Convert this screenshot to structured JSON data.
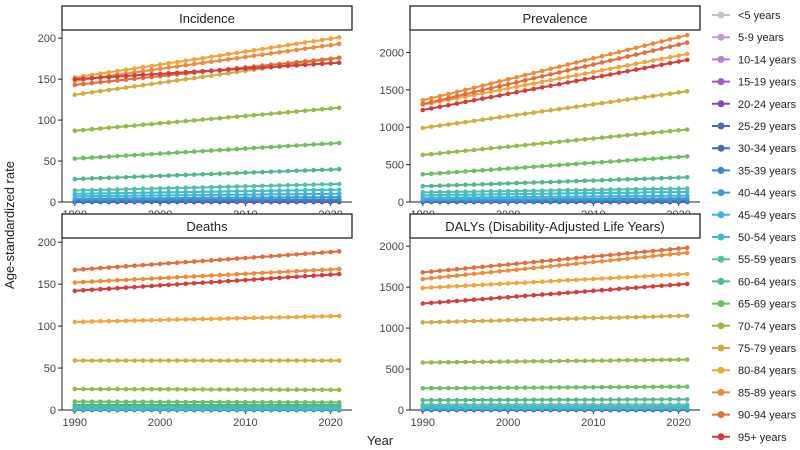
{
  "figure": {
    "ylabel": "Age-standardized rate",
    "xlabel": "Year",
    "colors": {
      "<5 years": "#c4c4c4",
      "5-9 years": "#c39bd3",
      "10-14 years": "#b27fd6",
      "15-19 years": "#9b59c9",
      "20-24 years": "#7d4cc4",
      "25-29 years": "#5565c2",
      "30-34 years": "#3f6fb0",
      "35-39 years": "#3a86bd",
      "40-44 years": "#3b9bd6",
      "45-49 years": "#44b0e0",
      "50-54 years": "#3dbecf",
      "55-59 years": "#52bfa4",
      "60-64 years": "#52b788",
      "65-69 years": "#6cbf60",
      "70-74 years": "#98b84a",
      "75-79 years": "#d1ab3e",
      "80-84 years": "#f4a339",
      "85-89 years": "#ee8a37",
      "90-94 years": "#e36c3b",
      "95+ years": "#d63b3b"
    }
  },
  "chart_data": [
    {
      "type": "line",
      "title": "Incidence",
      "xlabel": "Year",
      "ylabel": "Age-standardized rate",
      "x": [
        1990,
        2021
      ],
      "xticks": [
        "1990",
        "2000",
        "2010",
        "2020"
      ],
      "ylim": [
        0,
        210
      ],
      "yticks": [
        "0",
        "50",
        "100",
        "150",
        "200"
      ],
      "series": [
        {
          "name": "<5 years",
          "values": [
            0,
            0
          ]
        },
        {
          "name": "5-9 years",
          "values": [
            0,
            0
          ]
        },
        {
          "name": "10-14 years",
          "values": [
            0,
            0
          ]
        },
        {
          "name": "15-19 years",
          "values": [
            0,
            0
          ]
        },
        {
          "name": "20-24 years",
          "values": [
            0,
            0
          ]
        },
        {
          "name": "25-29 years",
          "values": [
            0.5,
            0.8
          ]
        },
        {
          "name": "30-34 years",
          "values": [
            1,
            1.5
          ]
        },
        {
          "name": "35-39 years",
          "values": [
            2,
            3
          ]
        },
        {
          "name": "40-44 years",
          "values": [
            4,
            6
          ]
        },
        {
          "name": "45-49 years",
          "values": [
            7,
            10
          ]
        },
        {
          "name": "50-54 years",
          "values": [
            10,
            15
          ]
        },
        {
          "name": "55-59 years",
          "values": [
            14,
            22
          ]
        },
        {
          "name": "60-64 years",
          "values": [
            28,
            40
          ]
        },
        {
          "name": "65-69 years",
          "values": [
            53,
            72
          ]
        },
        {
          "name": "70-74 years",
          "values": [
            87,
            115
          ]
        },
        {
          "name": "75-79 years",
          "values": [
            131,
            176
          ]
        },
        {
          "name": "80-84 years",
          "values": [
            152,
            201
          ]
        },
        {
          "name": "85-89 years",
          "values": [
            148,
            193
          ]
        },
        {
          "name": "90-94 years",
          "values": [
            143,
            176
          ]
        },
        {
          "name": "95+ years",
          "values": [
            150,
            170
          ]
        }
      ]
    },
    {
      "type": "line",
      "title": "Prevalence",
      "xlabel": "Year",
      "ylabel": "Age-standardized rate",
      "x": [
        1990,
        2021
      ],
      "xticks": [
        "1990",
        "2000",
        "2010",
        "2020"
      ],
      "ylim": [
        0,
        2300
      ],
      "yticks": [
        "0",
        "500",
        "1000",
        "1500",
        "2000"
      ],
      "series": [
        {
          "name": "<5 years",
          "values": [
            0,
            0
          ]
        },
        {
          "name": "5-9 years",
          "values": [
            0,
            0
          ]
        },
        {
          "name": "10-14 years",
          "values": [
            0,
            0
          ]
        },
        {
          "name": "15-19 years",
          "values": [
            0,
            0
          ]
        },
        {
          "name": "20-24 years",
          "values": [
            0,
            0
          ]
        },
        {
          "name": "25-29 years",
          "values": [
            3,
            5
          ]
        },
        {
          "name": "30-34 years",
          "values": [
            8,
            12
          ]
        },
        {
          "name": "35-39 years",
          "values": [
            15,
            25
          ]
        },
        {
          "name": "40-44 years",
          "values": [
            30,
            50
          ]
        },
        {
          "name": "45-49 years",
          "values": [
            55,
            85
          ]
        },
        {
          "name": "50-54 years",
          "values": [
            90,
            135
          ]
        },
        {
          "name": "55-59 years",
          "values": [
            130,
            180
          ]
        },
        {
          "name": "60-64 years",
          "values": [
            210,
            330
          ]
        },
        {
          "name": "65-69 years",
          "values": [
            370,
            610
          ]
        },
        {
          "name": "70-74 years",
          "values": [
            630,
            970
          ]
        },
        {
          "name": "75-79 years",
          "values": [
            990,
            1480
          ]
        },
        {
          "name": "80-84 years",
          "values": [
            1300,
            1980
          ]
        },
        {
          "name": "85-89 years",
          "values": [
            1360,
            2230
          ]
        },
        {
          "name": "90-94 years",
          "values": [
            1310,
            2130
          ]
        },
        {
          "name": "95+ years",
          "values": [
            1230,
            1900
          ]
        }
      ]
    },
    {
      "type": "line",
      "title": "Deaths",
      "xlabel": "Year",
      "ylabel": "Age-standardized rate",
      "x": [
        1990,
        2021
      ],
      "xticks": [
        "1990",
        "2000",
        "2010",
        "2020"
      ],
      "ylim": [
        0,
        205
      ],
      "yticks": [
        "0",
        "50",
        "100",
        "150",
        "200"
      ],
      "series": [
        {
          "name": "<5 years",
          "values": [
            0,
            0
          ]
        },
        {
          "name": "5-9 years",
          "values": [
            0,
            0
          ]
        },
        {
          "name": "10-14 years",
          "values": [
            0,
            0
          ]
        },
        {
          "name": "15-19 years",
          "values": [
            0,
            0
          ]
        },
        {
          "name": "20-24 years",
          "values": [
            0,
            0
          ]
        },
        {
          "name": "25-29 years",
          "values": [
            0,
            0
          ]
        },
        {
          "name": "30-34 years",
          "values": [
            0,
            0
          ]
        },
        {
          "name": "35-39 years",
          "values": [
            0.2,
            0.2
          ]
        },
        {
          "name": "40-44 years",
          "values": [
            0.5,
            0.5
          ]
        },
        {
          "name": "45-49 years",
          "values": [
            1,
            1
          ]
        },
        {
          "name": "50-54 years",
          "values": [
            2,
            2
          ]
        },
        {
          "name": "55-59 years",
          "values": [
            4,
            4
          ]
        },
        {
          "name": "60-64 years",
          "values": [
            6,
            6
          ]
        },
        {
          "name": "65-69 years",
          "values": [
            10,
            9
          ]
        },
        {
          "name": "70-74 years",
          "values": [
            25,
            24
          ]
        },
        {
          "name": "75-79 years",
          "values": [
            59,
            59
          ]
        },
        {
          "name": "80-84 years",
          "values": [
            105,
            112
          ]
        },
        {
          "name": "85-89 years",
          "values": [
            152,
            168
          ]
        },
        {
          "name": "90-94 years",
          "values": [
            167,
            189
          ]
        },
        {
          "name": "95+ years",
          "values": [
            142,
            162
          ]
        }
      ]
    },
    {
      "type": "line",
      "title": "DALYs (Disability-Adjusted Life Years)",
      "xlabel": "Year",
      "ylabel": "Age-standardized rate",
      "x": [
        1990,
        2021
      ],
      "xticks": [
        "1990",
        "2000",
        "2010",
        "2020"
      ],
      "ylim": [
        0,
        2100
      ],
      "yticks": [
        "0",
        "500",
        "1000",
        "1500",
        "2000"
      ],
      "series": [
        {
          "name": "<5 years",
          "values": [
            0,
            0
          ]
        },
        {
          "name": "5-9 years",
          "values": [
            0,
            0
          ]
        },
        {
          "name": "10-14 years",
          "values": [
            0,
            0
          ]
        },
        {
          "name": "15-19 years",
          "values": [
            0,
            0
          ]
        },
        {
          "name": "20-24 years",
          "values": [
            0,
            0
          ]
        },
        {
          "name": "25-29 years",
          "values": [
            2,
            2
          ]
        },
        {
          "name": "30-34 years",
          "values": [
            4,
            4
          ]
        },
        {
          "name": "35-39 years",
          "values": [
            8,
            8
          ]
        },
        {
          "name": "40-44 years",
          "values": [
            15,
            15
          ]
        },
        {
          "name": "45-49 years",
          "values": [
            25,
            25
          ]
        },
        {
          "name": "50-54 years",
          "values": [
            40,
            40
          ]
        },
        {
          "name": "55-59 years",
          "values": [
            65,
            65
          ]
        },
        {
          "name": "60-64 years",
          "values": [
            120,
            130
          ]
        },
        {
          "name": "65-69 years",
          "values": [
            265,
            285
          ]
        },
        {
          "name": "70-74 years",
          "values": [
            580,
            615
          ]
        },
        {
          "name": "75-79 years",
          "values": [
            1070,
            1150
          ]
        },
        {
          "name": "80-84 years",
          "values": [
            1490,
            1660
          ]
        },
        {
          "name": "85-89 years",
          "values": [
            1600,
            1920
          ]
        },
        {
          "name": "90-94 years",
          "values": [
            1680,
            1980
          ]
        },
        {
          "name": "95+ years",
          "values": [
            1300,
            1540
          ]
        }
      ]
    }
  ]
}
